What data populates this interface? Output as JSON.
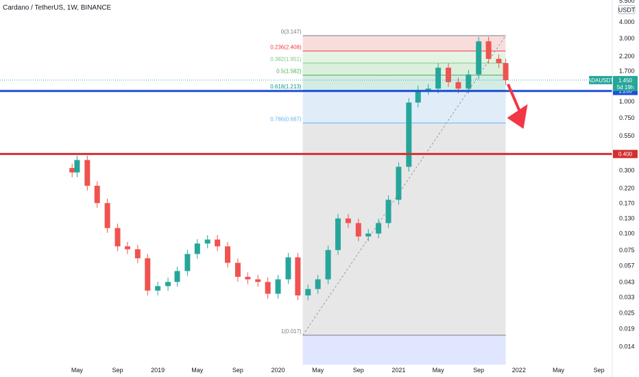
{
  "header": {
    "title": "Cardano / TetherUS, 1W, BINANCE",
    "currency": "USDT"
  },
  "colors": {
    "up": "#26a69a",
    "down": "#ef5350",
    "support_line": "#1f4fd8",
    "resistance_line": "#d32f2f",
    "arrow": "#f23645",
    "ticker_badge": "#26a69a"
  },
  "chart_data": {
    "type": "candlestick",
    "symbol": "ADAUSDT",
    "interval": "1W",
    "y_scale": "log",
    "ylim": [
      0.012,
      5.6
    ],
    "y_ticks": [
      "4.000",
      "3.000",
      "2.200",
      "1.700",
      "1.000",
      "0.750",
      "0.550",
      "0.300",
      "0.220",
      "0.170",
      "0.130",
      "0.100",
      "0.075",
      "0.057",
      "0.043",
      "0.033",
      "0.025",
      "0.019",
      "0.014"
    ],
    "y_tick_top_partial": "5.500",
    "x_ticks": [
      "May",
      "Sep",
      "2019",
      "May",
      "Sep",
      "2020",
      "May",
      "Sep",
      "2021",
      "May",
      "Sep",
      "2022",
      "May",
      "Sep"
    ],
    "price_series": {
      "x": [
        "2018-04-16",
        "2018-05-01",
        "2018-06-01",
        "2018-07-01",
        "2018-08-01",
        "2018-09-01",
        "2018-10-01",
        "2018-11-01",
        "2018-12-01",
        "2019-01-01",
        "2019-02-01",
        "2019-03-01",
        "2019-04-01",
        "2019-05-01",
        "2019-06-01",
        "2019-07-01",
        "2019-08-01",
        "2019-09-01",
        "2019-10-01",
        "2019-11-01",
        "2019-12-01",
        "2020-01-01",
        "2020-02-01",
        "2020-03-01",
        "2020-04-01",
        "2020-05-01",
        "2020-06-01",
        "2020-07-01",
        "2020-08-01",
        "2020-09-01",
        "2020-10-01",
        "2020-11-01",
        "2020-12-01",
        "2021-01-01",
        "2021-02-01",
        "2021-03-01",
        "2021-04-01",
        "2021-05-01",
        "2021-06-01",
        "2021-07-01",
        "2021-08-01",
        "2021-09-01",
        "2021-10-01",
        "2021-11-01",
        "2021-11-22"
      ],
      "close": [
        0.29,
        0.36,
        0.23,
        0.17,
        0.11,
        0.08,
        0.076,
        0.065,
        0.037,
        0.04,
        0.043,
        0.052,
        0.07,
        0.084,
        0.09,
        0.08,
        0.06,
        0.047,
        0.045,
        0.043,
        0.035,
        0.045,
        0.066,
        0.034,
        0.038,
        0.045,
        0.075,
        0.13,
        0.12,
        0.095,
        0.1,
        0.12,
        0.18,
        0.32,
        0.98,
        1.22,
        1.25,
        1.8,
        1.4,
        1.25,
        1.6,
        2.85,
        2.1,
        1.95,
        1.45
      ]
    },
    "fib_retracement": {
      "levels": [
        {
          "label": "0(3.147)",
          "value": 3.147,
          "color": "#787b86"
        },
        {
          "label": "0.236(2.408)",
          "value": 2.408,
          "color": "#f23645"
        },
        {
          "label": "0.382(1.951)",
          "value": 1.951,
          "color": "#81c784"
        },
        {
          "label": "0.5(1.582)",
          "value": 1.582,
          "color": "#4caf50"
        },
        {
          "label": "0.618(1.213)",
          "value": 1.213,
          "color": "#009688"
        },
        {
          "label": "0.786(0.687)",
          "value": 0.687,
          "color": "#64b5f6"
        },
        {
          "label": "1(0.017)",
          "value": 0.017,
          "color": "#787b86"
        }
      ],
      "start": "2020-03-16",
      "end": "2021-11-22"
    },
    "horizontal_lines": [
      {
        "value": 1.2,
        "label": "1.200",
        "color": "#1f4fd8"
      },
      {
        "value": 0.4,
        "label": "0.400",
        "color": "#d32f2f"
      }
    ],
    "last_price": {
      "value": 1.45,
      "label": "1.450",
      "ticker": "ADAUSDT",
      "countdown": "5d 19h"
    },
    "annotation": {
      "type": "arrow",
      "direction": "down",
      "from_date": "2021-11-29",
      "from_value": 1.35,
      "to_date": "2022-01-15",
      "to_value": 0.62
    }
  }
}
